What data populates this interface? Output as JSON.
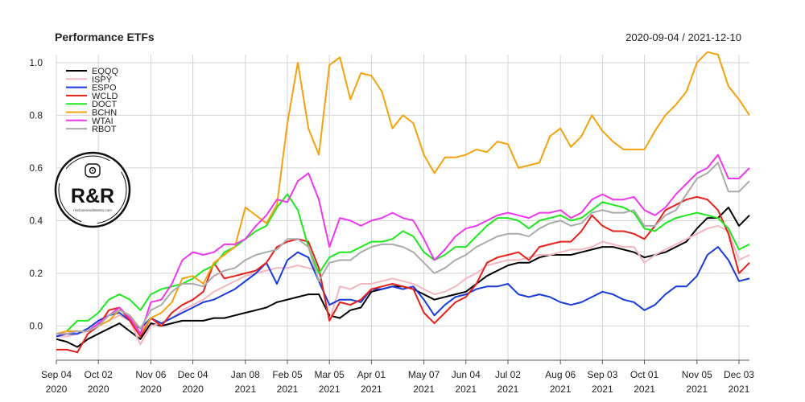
{
  "chart_data": {
    "type": "line",
    "title": "Performance ETFs",
    "date_range": "2020-09-04 / 2021-12-10",
    "xlabel": "",
    "ylabel": "",
    "ylim": [
      -0.13,
      1.03
    ],
    "y_ticks": [
      0.0,
      0.2,
      0.4,
      0.6,
      0.8,
      1.0
    ],
    "y_tick_labels": [
      "0.0",
      "0.2",
      "0.4",
      "0.6",
      "0.8",
      "1.0"
    ],
    "x_tick_labels": [
      {
        "top": "Sep 04",
        "bottom": "2020"
      },
      {
        "top": "Oct 02",
        "bottom": "2020"
      },
      {
        "top": "Nov 06",
        "bottom": "2020"
      },
      {
        "top": "Dec 04",
        "bottom": "2020"
      },
      {
        "top": "Jan 08",
        "bottom": "2021"
      },
      {
        "top": "Feb 05",
        "bottom": "2021"
      },
      {
        "top": "Mar 05",
        "bottom": "2021"
      },
      {
        "top": "Apr 01",
        "bottom": "2021"
      },
      {
        "top": "May 07",
        "bottom": "2021"
      },
      {
        "top": "Jun 04",
        "bottom": "2021"
      },
      {
        "top": "Jul 02",
        "bottom": "2021"
      },
      {
        "top": "Aug 06",
        "bottom": "2021"
      },
      {
        "top": "Sep 03",
        "bottom": "2021"
      },
      {
        "top": "Oct 01",
        "bottom": "2021"
      },
      {
        "top": "Nov 05",
        "bottom": "2021"
      },
      {
        "top": "Dec 03",
        "bottom": "2021"
      }
    ],
    "x_tick_weeks": [
      0,
      4,
      9,
      13,
      18,
      22,
      26,
      30,
      35,
      39,
      43,
      48,
      52,
      56,
      61,
      65
    ],
    "x_count": 67,
    "grid": true,
    "legend_position": "top-left",
    "series": [
      {
        "name": "EQQQ",
        "color": "#000000",
        "values": [
          -0.05,
          -0.06,
          -0.08,
          -0.05,
          -0.03,
          -0.01,
          0.01,
          -0.02,
          -0.05,
          0.01,
          0.0,
          0.01,
          0.02,
          0.02,
          0.02,
          0.03,
          0.03,
          0.04,
          0.05,
          0.06,
          0.07,
          0.09,
          0.1,
          0.11,
          0.12,
          0.12,
          0.04,
          0.03,
          0.06,
          0.07,
          0.13,
          0.14,
          0.15,
          0.15,
          0.14,
          0.12,
          0.1,
          0.11,
          0.12,
          0.13,
          0.16,
          0.19,
          0.21,
          0.23,
          0.24,
          0.24,
          0.26,
          0.27,
          0.27,
          0.27,
          0.28,
          0.29,
          0.3,
          0.3,
          0.29,
          0.28,
          0.26,
          0.27,
          0.28,
          0.3,
          0.32,
          0.37,
          0.41,
          0.41,
          0.45,
          0.38,
          0.42
        ]
      },
      {
        "name": "ISPY",
        "color": "#f4b6c2",
        "values": [
          -0.04,
          -0.04,
          -0.03,
          -0.02,
          0.0,
          0.02,
          0.04,
          0.02,
          -0.07,
          0.0,
          0.01,
          0.03,
          0.06,
          0.08,
          0.1,
          0.13,
          0.15,
          0.17,
          0.19,
          0.2,
          0.21,
          0.22,
          0.22,
          0.23,
          0.22,
          0.21,
          0.02,
          0.15,
          0.14,
          0.16,
          0.16,
          0.17,
          0.18,
          0.17,
          0.16,
          0.14,
          0.12,
          0.13,
          0.15,
          0.18,
          0.2,
          0.23,
          0.24,
          0.25,
          0.25,
          0.26,
          0.27,
          0.27,
          0.28,
          0.29,
          0.29,
          0.3,
          0.32,
          0.31,
          0.3,
          0.3,
          0.24,
          0.27,
          0.29,
          0.31,
          0.33,
          0.35,
          0.37,
          0.38,
          0.36,
          0.25,
          0.27
        ]
      },
      {
        "name": "ESPO",
        "color": "#1a3bd9",
        "values": [
          -0.04,
          -0.03,
          -0.03,
          -0.01,
          0.02,
          0.04,
          0.05,
          0.02,
          -0.01,
          0.03,
          0.01,
          0.03,
          0.05,
          0.07,
          0.09,
          0.1,
          0.12,
          0.14,
          0.17,
          0.2,
          0.24,
          0.16,
          0.25,
          0.28,
          0.26,
          0.17,
          0.08,
          0.1,
          0.1,
          0.09,
          0.14,
          0.14,
          0.15,
          0.14,
          0.15,
          0.1,
          0.04,
          0.08,
          0.11,
          0.12,
          0.14,
          0.15,
          0.15,
          0.16,
          0.12,
          0.11,
          0.12,
          0.11,
          0.09,
          0.08,
          0.09,
          0.11,
          0.13,
          0.12,
          0.1,
          0.09,
          0.06,
          0.08,
          0.12,
          0.15,
          0.15,
          0.19,
          0.27,
          0.3,
          0.25,
          0.17,
          0.18
        ]
      },
      {
        "name": "WCLD",
        "color": "#e6201a",
        "values": [
          -0.09,
          -0.09,
          -0.1,
          -0.03,
          0.0,
          0.06,
          0.07,
          0.02,
          -0.04,
          0.03,
          0.0,
          0.05,
          0.08,
          0.1,
          0.13,
          0.24,
          0.18,
          0.19,
          0.2,
          0.21,
          0.24,
          0.3,
          0.32,
          0.33,
          0.32,
          0.22,
          0.02,
          0.09,
          0.08,
          0.1,
          0.14,
          0.15,
          0.16,
          0.15,
          0.14,
          0.05,
          0.01,
          0.05,
          0.09,
          0.11,
          0.16,
          0.24,
          0.26,
          0.27,
          0.28,
          0.25,
          0.3,
          0.31,
          0.32,
          0.32,
          0.36,
          0.42,
          0.38,
          0.36,
          0.36,
          0.35,
          0.33,
          0.38,
          0.44,
          0.46,
          0.48,
          0.49,
          0.48,
          0.44,
          0.35,
          0.2,
          0.24
        ]
      },
      {
        "name": "DOCT",
        "color": "#1ee81e",
        "values": [
          -0.03,
          -0.02,
          0.02,
          0.02,
          0.05,
          0.1,
          0.12,
          0.1,
          0.06,
          0.12,
          0.14,
          0.15,
          0.16,
          0.18,
          0.21,
          0.23,
          0.28,
          0.3,
          0.33,
          0.36,
          0.38,
          0.45,
          0.5,
          0.44,
          0.3,
          0.2,
          0.26,
          0.28,
          0.28,
          0.3,
          0.32,
          0.32,
          0.33,
          0.36,
          0.34,
          0.28,
          0.25,
          0.27,
          0.3,
          0.3,
          0.34,
          0.38,
          0.41,
          0.41,
          0.4,
          0.37,
          0.4,
          0.41,
          0.42,
          0.4,
          0.41,
          0.44,
          0.47,
          0.46,
          0.45,
          0.43,
          0.37,
          0.36,
          0.39,
          0.41,
          0.42,
          0.43,
          0.42,
          0.41,
          0.37,
          0.29,
          0.31
        ]
      },
      {
        "name": "BCHN",
        "color": "#f5a20f",
        "values": [
          -0.03,
          -0.02,
          -0.02,
          -0.02,
          0.0,
          0.02,
          0.06,
          0.04,
          -0.03,
          0.03,
          0.05,
          0.09,
          0.18,
          0.19,
          0.16,
          0.24,
          0.27,
          0.3,
          0.45,
          0.42,
          0.39,
          0.46,
          0.77,
          1.0,
          0.75,
          0.65,
          0.99,
          1.02,
          0.86,
          0.96,
          0.95,
          0.89,
          0.75,
          0.8,
          0.77,
          0.65,
          0.58,
          0.64,
          0.64,
          0.65,
          0.67,
          0.66,
          0.7,
          0.69,
          0.6,
          0.61,
          0.62,
          0.72,
          0.75,
          0.68,
          0.72,
          0.8,
          0.74,
          0.7,
          0.67,
          0.67,
          0.67,
          0.74,
          0.8,
          0.84,
          0.89,
          1.0,
          1.04,
          1.03,
          0.91,
          0.86,
          0.8
        ]
      },
      {
        "name": "WTAI",
        "color": "#f037f0",
        "values": [
          -0.03,
          -0.03,
          -0.02,
          -0.02,
          0.01,
          0.04,
          0.07,
          0.03,
          -0.03,
          0.09,
          0.1,
          0.16,
          0.25,
          0.28,
          0.27,
          0.28,
          0.31,
          0.31,
          0.33,
          0.38,
          0.42,
          0.48,
          0.47,
          0.55,
          0.58,
          0.48,
          0.3,
          0.41,
          0.4,
          0.38,
          0.4,
          0.41,
          0.43,
          0.41,
          0.4,
          0.33,
          0.25,
          0.29,
          0.34,
          0.37,
          0.38,
          0.4,
          0.42,
          0.43,
          0.42,
          0.41,
          0.43,
          0.43,
          0.44,
          0.41,
          0.43,
          0.48,
          0.5,
          0.48,
          0.48,
          0.49,
          0.44,
          0.42,
          0.45,
          0.5,
          0.54,
          0.58,
          0.6,
          0.65,
          0.56,
          0.56,
          0.6
        ]
      },
      {
        "name": "RBOT",
        "color": "#aaaaaa",
        "values": [
          -0.03,
          -0.03,
          -0.02,
          -0.02,
          0.0,
          0.04,
          0.06,
          0.04,
          -0.01,
          0.06,
          0.08,
          0.13,
          0.16,
          0.16,
          0.15,
          0.19,
          0.21,
          0.22,
          0.25,
          0.27,
          0.28,
          0.29,
          0.33,
          0.33,
          0.3,
          0.17,
          0.24,
          0.25,
          0.25,
          0.28,
          0.3,
          0.31,
          0.31,
          0.3,
          0.28,
          0.24,
          0.2,
          0.22,
          0.25,
          0.27,
          0.3,
          0.32,
          0.34,
          0.35,
          0.35,
          0.34,
          0.37,
          0.39,
          0.4,
          0.38,
          0.39,
          0.43,
          0.44,
          0.43,
          0.43,
          0.44,
          0.38,
          0.38,
          0.42,
          0.44,
          0.5,
          0.56,
          0.58,
          0.62,
          0.51,
          0.51,
          0.55
        ]
      }
    ]
  },
  "logo": {
    "text": "R&R",
    "subtext": "rischioerendimento.com"
  }
}
